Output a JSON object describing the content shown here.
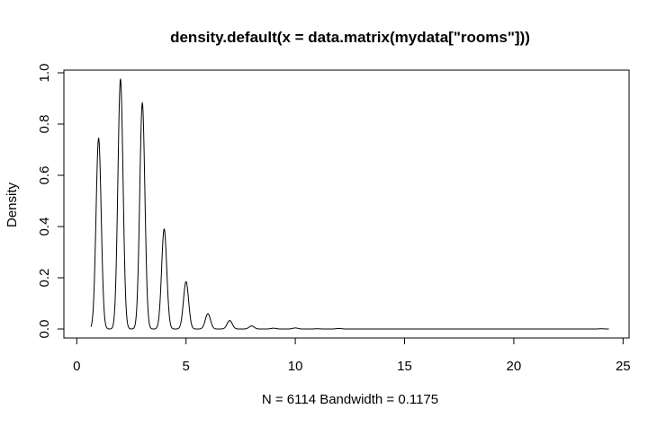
{
  "chart_data": {
    "type": "line",
    "title": "density.default(x = data.matrix(mydata[\"rooms\"]))",
    "xlabel": "N = 6114   Bandwidth = 0.1175",
    "ylabel": "Density",
    "xlim": [
      0,
      25
    ],
    "ylim": [
      0,
      1.0
    ],
    "x_ticks": [
      0,
      5,
      10,
      15,
      20,
      25
    ],
    "y_ticks": [
      0.0,
      0.2,
      0.4,
      0.6,
      0.8,
      1.0
    ],
    "x_tick_labels": [
      "0",
      "5",
      "10",
      "15",
      "20",
      "25"
    ],
    "y_tick_labels": [
      "0.0",
      "0.2",
      "0.4",
      "0.6",
      "0.8",
      "1.0"
    ],
    "grid": false,
    "series": [
      {
        "x_range": [
          0.65,
          24.35
        ],
        "peaks": [
          {
            "x": 1,
            "y": 0.745
          },
          {
            "x": 2,
            "y": 0.975
          },
          {
            "x": 3,
            "y": 0.882
          },
          {
            "x": 4,
            "y": 0.39
          },
          {
            "x": 5,
            "y": 0.185
          },
          {
            "x": 6,
            "y": 0.06
          },
          {
            "x": 7,
            "y": 0.033
          },
          {
            "x": 8,
            "y": 0.012
          },
          {
            "x": 9,
            "y": 0.003
          },
          {
            "x": 10,
            "y": 0.004
          },
          {
            "x": 11,
            "y": 0.001
          },
          {
            "x": 12,
            "y": 0.002
          },
          {
            "x": 24,
            "y": 0.001
          }
        ]
      }
    ]
  }
}
